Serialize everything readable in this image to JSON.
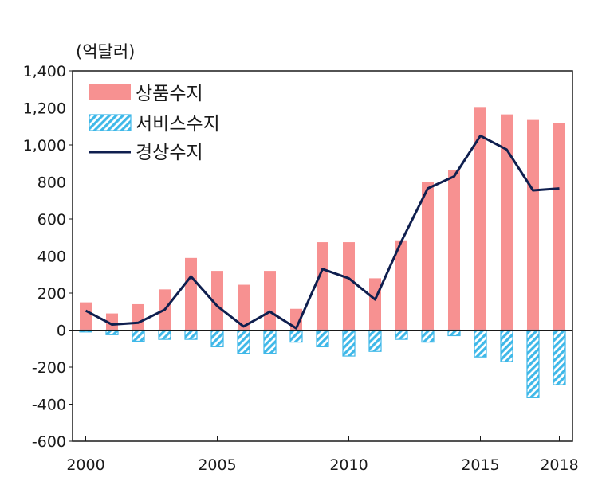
{
  "chart_data": {
    "type": "bar",
    "unit_label": "(억달러)",
    "x": [
      2000,
      2001,
      2002,
      2003,
      2004,
      2005,
      2006,
      2007,
      2008,
      2009,
      2010,
      2011,
      2012,
      2013,
      2014,
      2015,
      2016,
      2017,
      2018
    ],
    "x_tick_labels": [
      "2000",
      "2005",
      "2010",
      "2015",
      "2018"
    ],
    "y_tick_labels": [
      "1,400",
      "1,200",
      "1,000",
      "800",
      "600",
      "400",
      "200",
      "0",
      "-200",
      "-400",
      "-600"
    ],
    "ylim": [
      -600,
      1400
    ],
    "series": [
      {
        "name": "상품수지",
        "type": "bar",
        "color": "#f79191",
        "values": [
          150,
          90,
          140,
          220,
          390,
          320,
          245,
          320,
          115,
          475,
          475,
          280,
          485,
          800,
          865,
          1205,
          1165,
          1135,
          1120
        ]
      },
      {
        "name": "서비스수지",
        "type": "bar",
        "pattern": "hatched",
        "color": "#3fb8e8",
        "values": [
          -10,
          -25,
          -60,
          -50,
          -50,
          -90,
          -125,
          -125,
          -65,
          -90,
          -140,
          -115,
          -50,
          -65,
          -30,
          -145,
          -170,
          -365,
          -295
        ]
      },
      {
        "name": "경상수지",
        "type": "line",
        "color": "#0f1f4f",
        "values": [
          105,
          30,
          40,
          110,
          290,
          130,
          20,
          100,
          10,
          330,
          280,
          165,
          480,
          765,
          830,
          1050,
          975,
          755,
          765
        ]
      }
    ],
    "legend_position": "top-left",
    "grid": false
  }
}
